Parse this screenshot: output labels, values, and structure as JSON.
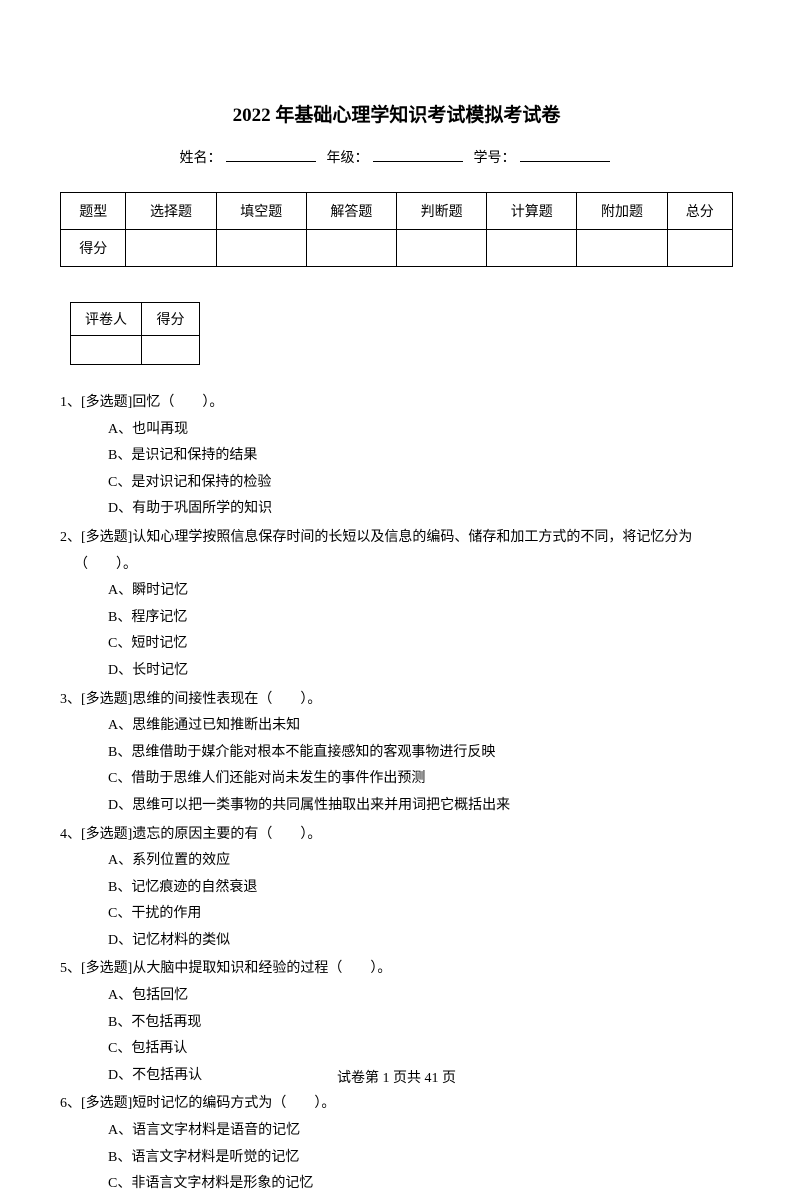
{
  "title": "2022 年基础心理学知识考试模拟考试卷",
  "info": {
    "name_label": "姓名：",
    "grade_label": "年级：",
    "id_label": "学号："
  },
  "score_table": {
    "headers": [
      "题型",
      "选择题",
      "填空题",
      "解答题",
      "判断题",
      "计算题",
      "附加题",
      "总分"
    ],
    "score_label": "得分"
  },
  "grader_table": {
    "grader_label": "评卷人",
    "score_label": "得分"
  },
  "questions": [
    {
      "num": "1、",
      "type": "[多选题]",
      "stem": "回忆（　　）。",
      "options": [
        "A、也叫再现",
        "B、是识记和保持的结果",
        "C、是对识记和保持的检验",
        "D、有助于巩固所学的知识"
      ]
    },
    {
      "num": "2、",
      "type": "[多选题]",
      "stem": "认知心理学按照信息保存时间的长短以及信息的编码、储存和加工方式的不同，将记忆分为（　　）。",
      "options": [
        "A、瞬时记忆",
        "B、程序记忆",
        "C、短时记忆",
        "D、长时记忆"
      ]
    },
    {
      "num": "3、",
      "type": "[多选题]",
      "stem": "思维的间接性表现在（　　）。",
      "options": [
        "A、思维能通过已知推断出未知",
        "B、思维借助于媒介能对根本不能直接感知的客观事物进行反映",
        "C、借助于思维人们还能对尚未发生的事件作出预测",
        "D、思维可以把一类事物的共同属性抽取出来并用词把它概括出来"
      ]
    },
    {
      "num": "4、",
      "type": "[多选题]",
      "stem": "遗忘的原因主要的有（　　）。",
      "options": [
        "A、系列位置的效应",
        "B、记忆痕迹的自然衰退",
        "C、干扰的作用",
        "D、记忆材料的类似"
      ]
    },
    {
      "num": "5、",
      "type": "[多选题]",
      "stem": "从大脑中提取知识和经验的过程（　　）。",
      "options": [
        "A、包括回忆",
        "B、不包括再现",
        "C、包括再认",
        "D、不包括再认"
      ]
    },
    {
      "num": "6、",
      "type": "[多选题]",
      "stem": "短时记忆的编码方式为（　　）。",
      "options": [
        "A、语言文字材料是语音的记忆",
        "B、语言文字材料是听觉的记忆",
        "C、非语言文字材料是形象的记忆"
      ]
    }
  ],
  "footer": {
    "prefix": "试卷第 ",
    "page": "1",
    "middle": " 页共 ",
    "total": "41",
    "suffix": " 页"
  }
}
